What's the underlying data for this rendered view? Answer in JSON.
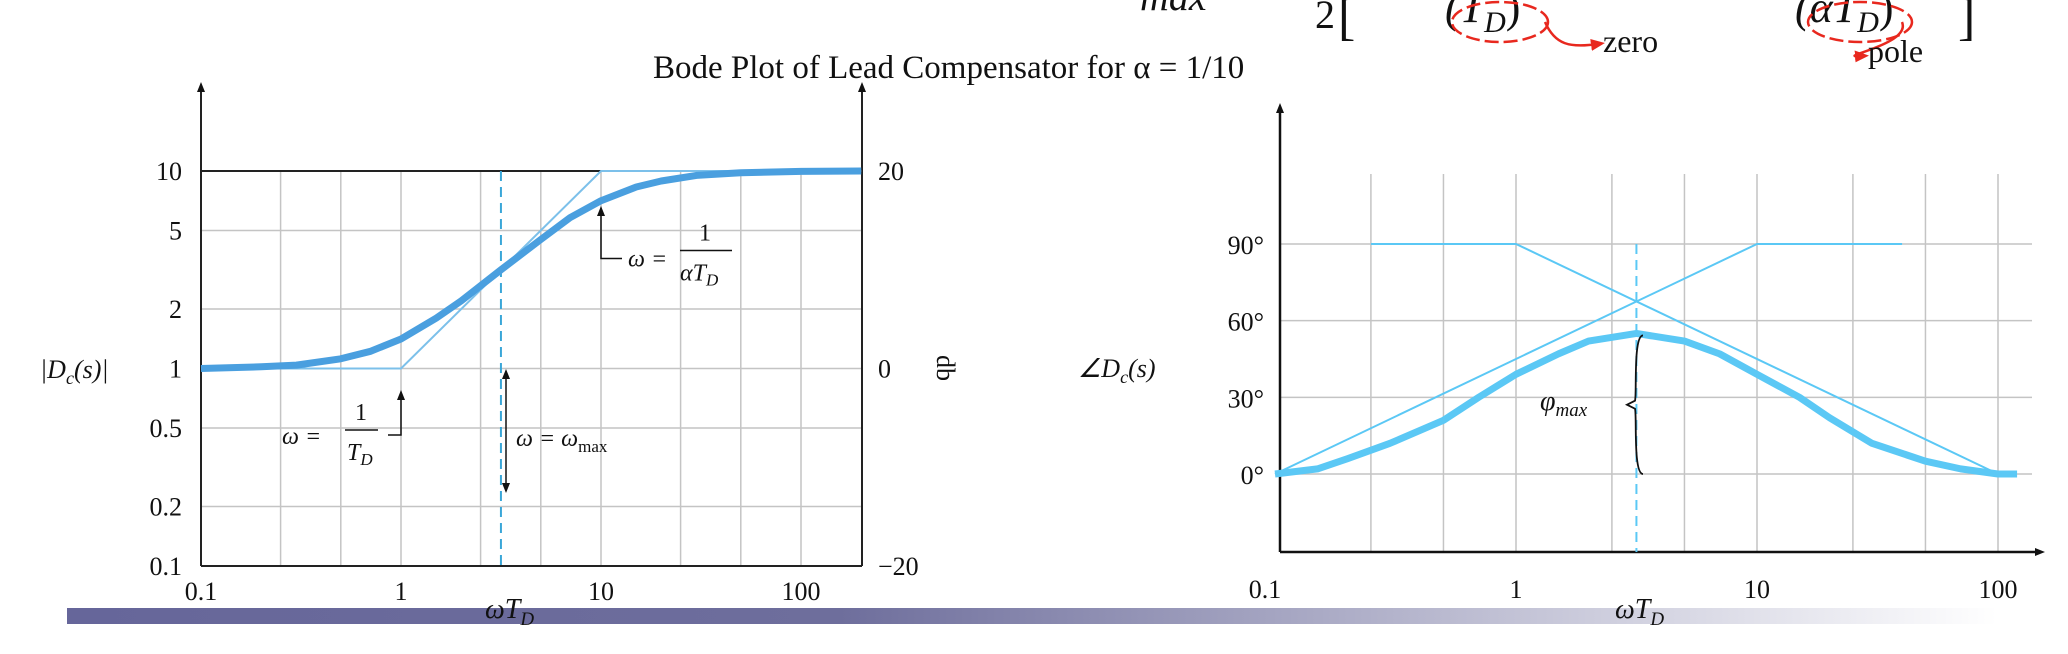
{
  "title": "Bode Plot of Lead Compensator for α = 1/10",
  "equation_fragments": {
    "max": "max",
    "two": "2",
    "lbracket": "[",
    "zero_term": "(T",
    "zero_sub": "D",
    "zero_close": ")",
    "pole_term": "(αT",
    "pole_sub": "D",
    "pole_close": ")",
    "rbracket": "]"
  },
  "callouts": {
    "zero": "zero",
    "pole": "pole",
    "callout_color": "#e8281e"
  },
  "bottom_bar": {
    "color_start": "#66669a",
    "color_end": "#ffffff"
  },
  "chart_data": [
    {
      "type": "line",
      "x_scale": "log",
      "y_scale": "log",
      "xlim": [
        0.1,
        200
      ],
      "ylim": [
        0.1,
        10
      ],
      "xticks": [
        0.1,
        1,
        10,
        100
      ],
      "xtick_labels": [
        "0.1",
        "1",
        "10",
        "100"
      ],
      "yticks": [
        0.1,
        0.2,
        0.5,
        1,
        2,
        5,
        10
      ],
      "ytick_labels": [
        "0.1",
        "0.2",
        "0.5",
        "1",
        "2",
        "5",
        "10"
      ],
      "right_yticks": [
        0.1,
        1,
        10
      ],
      "right_ytick_labels": [
        "−20",
        "0",
        "20"
      ],
      "right_ylabel": "db",
      "ylabel": {
        "main": "|D",
        "sub": "c",
        "rest": "(s)|"
      },
      "xlabel": {
        "main": "ωT",
        "sub": "D"
      },
      "grid": true,
      "grid_x": [
        0.25,
        0.5,
        1,
        2.5,
        5,
        10,
        25,
        50,
        100
      ],
      "grid_y": [
        0.2,
        0.5,
        1,
        2,
        5
      ],
      "omega_max": 3.16,
      "series_exact": {
        "x": [
          0.1,
          0.2,
          0.3,
          0.5,
          0.7,
          1,
          1.5,
          2,
          3.16,
          5,
          7,
          10,
          15,
          20,
          30,
          50,
          100,
          200
        ],
        "y": [
          1,
          1.02,
          1.04,
          1.12,
          1.22,
          1.41,
          1.8,
          2.2,
          3.16,
          4.5,
          5.8,
          7.07,
          8.3,
          8.9,
          9.5,
          9.8,
          9.95,
          10
        ],
        "color": "#4a9fdf"
      },
      "series_asymptote": {
        "x": [
          0.1,
          1,
          10,
          200
        ],
        "y": [
          1,
          1,
          10,
          10
        ],
        "color": "#7cc0ea"
      },
      "annotations": {
        "pole_eq": "ω =",
        "pole_num": "1",
        "pole_den": "αT",
        "pole_den_sub": "D",
        "zero_eq": "ω =",
        "zero_num": "1",
        "zero_den": "T",
        "zero_den_sub": "D",
        "max_eq": "ω = ω",
        "max_sub": "max"
      }
    },
    {
      "type": "line",
      "x_scale": "log",
      "xlim": [
        0.1,
        120
      ],
      "ylim": [
        -25,
        130
      ],
      "xticks": [
        0.1,
        1,
        10,
        100
      ],
      "xtick_labels": [
        "0.1",
        "1",
        "10",
        "100"
      ],
      "yticks": [
        0,
        30,
        60,
        90
      ],
      "ytick_labels": [
        "0°",
        "30°",
        "60°",
        "90°"
      ],
      "ylabel": {
        "main": "∠D",
        "sub": "c",
        "rest": "(s)"
      },
      "xlabel": {
        "main": "ωT",
        "sub": "D"
      },
      "grid": true,
      "grid_x": [
        0.25,
        0.5,
        1,
        2.5,
        5,
        10,
        25,
        50,
        100
      ],
      "grid_y": [
        0,
        30,
        60,
        90
      ],
      "omega_max": 3.16,
      "phi_max": 55,
      "phi_label": {
        "main": "φ",
        "sub": "max"
      },
      "series_exact": {
        "x": [
          0.1,
          0.15,
          0.2,
          0.3,
          0.5,
          0.7,
          1,
          1.5,
          2,
          3.16,
          5,
          7,
          10,
          15,
          20,
          30,
          50,
          70,
          100,
          120
        ],
        "y": [
          0,
          2,
          6,
          12,
          21,
          30,
          39,
          47,
          52,
          55,
          52,
          47,
          39,
          30,
          22,
          12,
          5,
          2,
          0,
          0
        ],
        "color": "#5bc8f5"
      },
      "series_zero_asymptote": {
        "x": [
          0.1,
          10,
          40
        ],
        "y": [
          0,
          90,
          90
        ],
        "color": "#5bc8f5"
      },
      "series_pole_asymptote": {
        "x": [
          0.25,
          1,
          100
        ],
        "y": [
          90,
          90,
          0
        ],
        "color": "#5bc8f5"
      }
    }
  ]
}
